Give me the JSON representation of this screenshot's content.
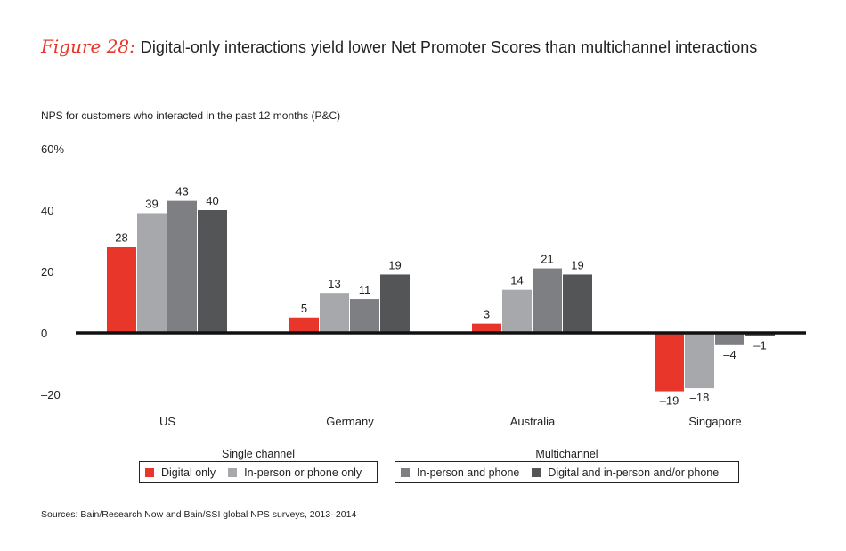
{
  "header": {
    "figure_label": "Figure 28:",
    "title": "Digital-only interactions yield lower Net Promoter Scores than multichannel interactions"
  },
  "source": "Sources: Bain/Research Now and Bain/SSI global NPS surveys, 2013–2014",
  "chart_data": {
    "type": "bar",
    "title": "Digital-only interactions yield lower Net Promoter Scores than multichannel interactions",
    "ylabel": "NPS for customers who interacted in the past 12 months (P&C)",
    "ylim": [
      -20,
      60
    ],
    "yticks": [
      {
        "v": 60,
        "label": "60%"
      },
      {
        "v": 40,
        "label": "40"
      },
      {
        "v": 20,
        "label": "20"
      },
      {
        "v": 0,
        "label": "0"
      },
      {
        "v": -20,
        "label": "–20"
      }
    ],
    "grid": false,
    "categories": [
      "US",
      "Germany",
      "Australia",
      "Singapore"
    ],
    "series": [
      {
        "name": "Digital only",
        "group": "Single channel",
        "color": "#e8372a",
        "values": [
          28,
          5,
          3,
          -19
        ]
      },
      {
        "name": "In-person or phone only",
        "group": "Single channel",
        "color": "#a7a8ab",
        "values": [
          39,
          13,
          14,
          -18
        ]
      },
      {
        "name": "In-person and phone",
        "group": "Multichannel",
        "color": "#7e7f83",
        "values": [
          43,
          11,
          21,
          -4
        ]
      },
      {
        "name": "Digital and in-person and/or phone",
        "group": "Multichannel",
        "color": "#545557",
        "values": [
          40,
          19,
          19,
          -1
        ]
      }
    ],
    "legend": {
      "placement": "bottom",
      "groups": [
        "Single channel",
        "Multichannel"
      ]
    }
  }
}
